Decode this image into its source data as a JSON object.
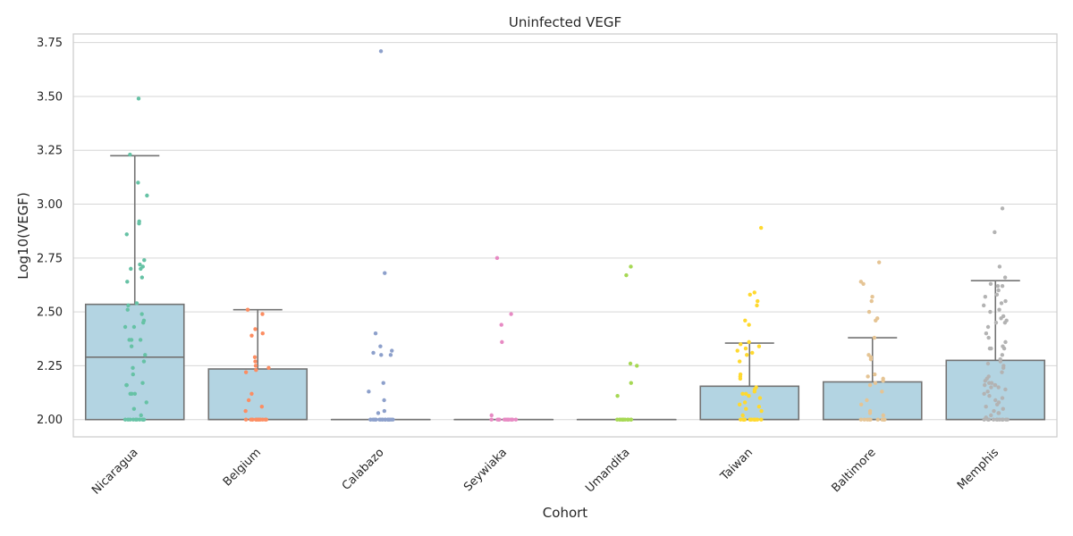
{
  "chart_data": {
    "type": "box",
    "title": "Uninfected VEGF",
    "xlabel": "Cohort",
    "ylabel": "Log10(VEGF)",
    "ylim": [
      1.92,
      3.79
    ],
    "yticks": [
      "2.00",
      "2.25",
      "2.50",
      "2.75",
      "3.00",
      "3.25",
      "3.50",
      "3.75"
    ],
    "grid": true,
    "box_color": "#b3d4e2",
    "box_edge_color": "#737373",
    "categories": [
      "Nicaragua",
      "Belgium",
      "Calabazo",
      "Seywiaka",
      "Umandita",
      "Taiwan",
      "Baltimore",
      "Memphis"
    ],
    "point_colors": [
      "#66c2a5",
      "#fc8d62",
      "#8da0cb",
      "#e78ac3",
      "#a6d854",
      "#ffd92f",
      "#e5c494",
      "#b3b3b3"
    ],
    "boxes": [
      {
        "q1": 2.0,
        "median": 2.29,
        "q3": 2.535,
        "whisker_low": 2.0,
        "whisker_high": 3.225
      },
      {
        "q1": 2.0,
        "median": 2.0,
        "q3": 2.235,
        "whisker_low": 2.0,
        "whisker_high": 2.51
      },
      {
        "q1": 2.0,
        "median": 2.0,
        "q3": 2.0,
        "whisker_low": 2.0,
        "whisker_high": 2.0
      },
      {
        "q1": 2.0,
        "median": 2.0,
        "q3": 2.0,
        "whisker_low": 2.0,
        "whisker_high": 2.0
      },
      {
        "q1": 2.0,
        "median": 2.0,
        "q3": 2.0,
        "whisker_low": 2.0,
        "whisker_high": 2.0
      },
      {
        "q1": 2.0,
        "median": 2.0,
        "q3": 2.155,
        "whisker_low": 2.0,
        "whisker_high": 2.355
      },
      {
        "q1": 2.0,
        "median": 2.0,
        "q3": 2.175,
        "whisker_low": 2.0,
        "whisker_high": 2.38
      },
      {
        "q1": 2.0,
        "median": 2.0,
        "q3": 2.275,
        "whisker_low": 2.0,
        "whisker_high": 2.645
      }
    ],
    "points": [
      [
        3.49,
        3.23,
        3.1,
        3.04,
        2.92,
        2.91,
        2.86,
        2.74,
        2.72,
        2.71,
        2.7,
        2.7,
        2.66,
        2.64,
        2.54,
        2.53,
        2.51,
        2.49,
        2.46,
        2.45,
        2.43,
        2.43,
        2.37,
        2.37,
        2.37,
        2.34,
        2.3,
        2.27,
        2.24,
        2.21,
        2.17,
        2.16,
        2.16,
        2.12,
        2.12,
        2.12,
        2.08,
        2.05,
        2.02,
        2.0,
        2.0,
        2.0,
        2.0,
        2.0,
        2.0,
        2.0,
        2.0,
        2.0,
        2.0
      ],
      [
        2.51,
        2.49,
        2.42,
        2.4,
        2.39,
        2.29,
        2.27,
        2.25,
        2.24,
        2.23,
        2.22,
        2.12,
        2.09,
        2.06,
        2.04,
        2.0,
        2.0,
        2.0,
        2.0,
        2.0,
        2.0,
        2.0,
        2.0,
        2.0,
        2.0,
        2.0,
        2.0,
        2.0
      ],
      [
        3.71,
        2.68,
        2.4,
        2.34,
        2.32,
        2.31,
        2.3,
        2.3,
        2.17,
        2.13,
        2.09,
        2.04,
        2.03,
        2.0,
        2.0,
        2.0,
        2.0,
        2.0,
        2.0,
        2.0,
        2.0,
        2.0,
        2.0,
        2.0,
        2.0,
        2.0,
        2.0,
        2.0,
        2.0,
        2.0,
        2.0,
        2.0,
        2.0
      ],
      [
        2.75,
        2.49,
        2.44,
        2.36,
        2.02,
        2.0,
        2.0,
        2.0,
        2.0,
        2.0,
        2.0,
        2.0,
        2.0,
        2.0,
        2.0,
        2.0,
        2.0,
        2.0
      ],
      [
        2.71,
        2.67,
        2.26,
        2.25,
        2.17,
        2.11,
        2.0,
        2.0,
        2.0,
        2.0,
        2.0,
        2.0,
        2.0,
        2.0,
        2.0,
        2.0,
        2.0,
        2.0
      ],
      [
        2.89,
        2.59,
        2.58,
        2.55,
        2.53,
        2.46,
        2.44,
        2.36,
        2.35,
        2.34,
        2.33,
        2.32,
        2.31,
        2.3,
        2.27,
        2.21,
        2.2,
        2.19,
        2.15,
        2.14,
        2.13,
        2.12,
        2.12,
        2.11,
        2.1,
        2.08,
        2.07,
        2.06,
        2.05,
        2.04,
        2.02,
        2.0,
        2.0,
        2.0,
        2.0,
        2.0,
        2.0,
        2.0,
        2.0,
        2.0,
        2.0,
        2.0,
        2.0,
        2.0,
        2.0,
        2.0
      ],
      [
        2.73,
        2.64,
        2.63,
        2.57,
        2.55,
        2.5,
        2.47,
        2.46,
        2.38,
        2.3,
        2.29,
        2.28,
        2.21,
        2.2,
        2.19,
        2.18,
        2.17,
        2.16,
        2.13,
        2.09,
        2.07,
        2.04,
        2.03,
        2.02,
        2.0,
        2.0,
        2.0,
        2.0,
        2.0,
        2.0,
        2.0,
        2.0,
        2.0,
        2.0
      ],
      [
        2.98,
        2.87,
        2.71,
        2.66,
        2.63,
        2.62,
        2.62,
        2.6,
        2.58,
        2.57,
        2.55,
        2.54,
        2.53,
        2.51,
        2.5,
        2.48,
        2.47,
        2.46,
        2.45,
        2.45,
        2.43,
        2.4,
        2.38,
        2.36,
        2.34,
        2.33,
        2.33,
        2.33,
        2.3,
        2.28,
        2.27,
        2.26,
        2.25,
        2.24,
        2.22,
        2.2,
        2.19,
        2.18,
        2.17,
        2.17,
        2.16,
        2.16,
        2.16,
        2.15,
        2.15,
        2.14,
        2.13,
        2.12,
        2.11,
        2.1,
        2.09,
        2.08,
        2.07,
        2.06,
        2.05,
        2.04,
        2.03,
        2.03,
        2.02,
        2.01,
        2.0,
        2.0,
        2.0,
        2.0,
        2.0,
        2.0,
        2.0,
        2.0,
        2.0,
        2.0,
        2.0,
        2.0
      ]
    ]
  }
}
